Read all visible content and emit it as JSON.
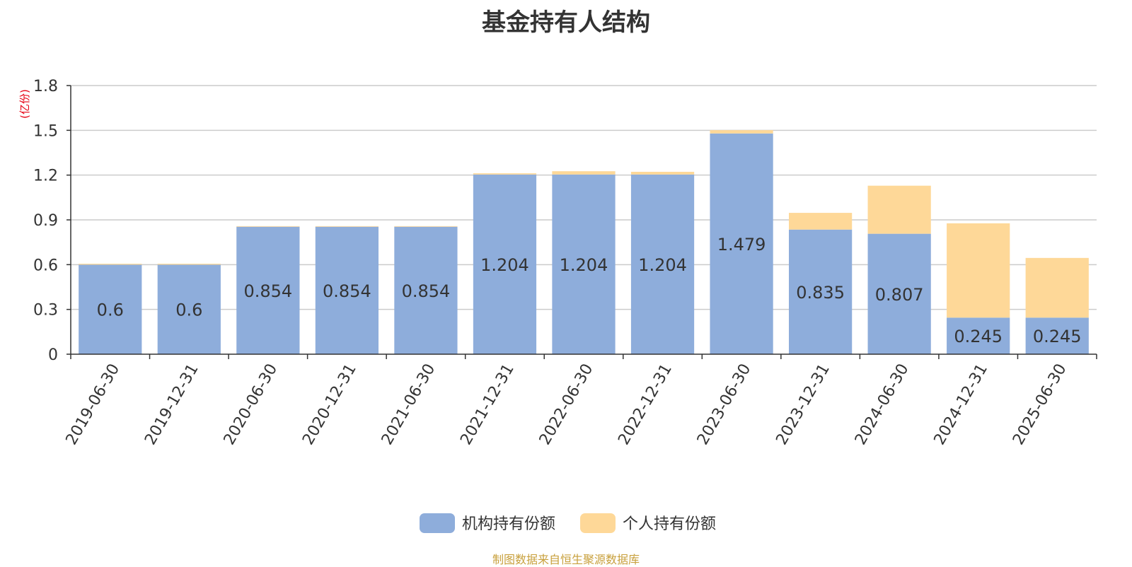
{
  "colors": {
    "institution": "#8eaddb",
    "individual": "#fed898",
    "unit_label": "#e60012",
    "source_note": "#c8a03c",
    "axis": "#333333",
    "grid": "#cccccc",
    "text": "#333333"
  },
  "source_note": "制图数据来自恒生聚源数据库",
  "chart_data": {
    "type": "bar",
    "stacked": true,
    "title": "基金持有人结构",
    "xlabel": "",
    "ylabel": "",
    "y_unit": "(亿份)",
    "ylim": [
      0,
      1.8
    ],
    "y_ticks": [
      "0",
      "0.3",
      "0.6",
      "0.9",
      "1.2",
      "1.5",
      "1.8"
    ],
    "grid": true,
    "legend_position": "bottom-center",
    "categories": [
      "2019-06-30",
      "2019-12-31",
      "2020-06-30",
      "2020-12-31",
      "2021-06-30",
      "2021-12-31",
      "2022-06-30",
      "2022-12-31",
      "2023-06-30",
      "2023-12-31",
      "2024-06-30",
      "2024-12-31",
      "2025-06-30"
    ],
    "series": [
      {
        "name": "机构持有份额",
        "color": "#8eaddb",
        "values": [
          0.6,
          0.6,
          0.854,
          0.854,
          0.854,
          1.204,
          1.204,
          1.204,
          1.479,
          0.835,
          0.807,
          0.245,
          0.245
        ],
        "data_labels": [
          "0.6",
          "0.6",
          "0.854",
          "0.854",
          "0.854",
          "1.204",
          "1.204",
          "1.204",
          "1.479",
          "0.835",
          "0.807",
          "0.245",
          "0.245"
        ]
      },
      {
        "name": "个人持有份额",
        "color": "#fed898",
        "values": [
          0.006,
          0.006,
          0.004,
          0.004,
          0.004,
          0.008,
          0.022,
          0.018,
          0.022,
          0.112,
          0.322,
          0.632,
          0.4
        ]
      }
    ]
  }
}
